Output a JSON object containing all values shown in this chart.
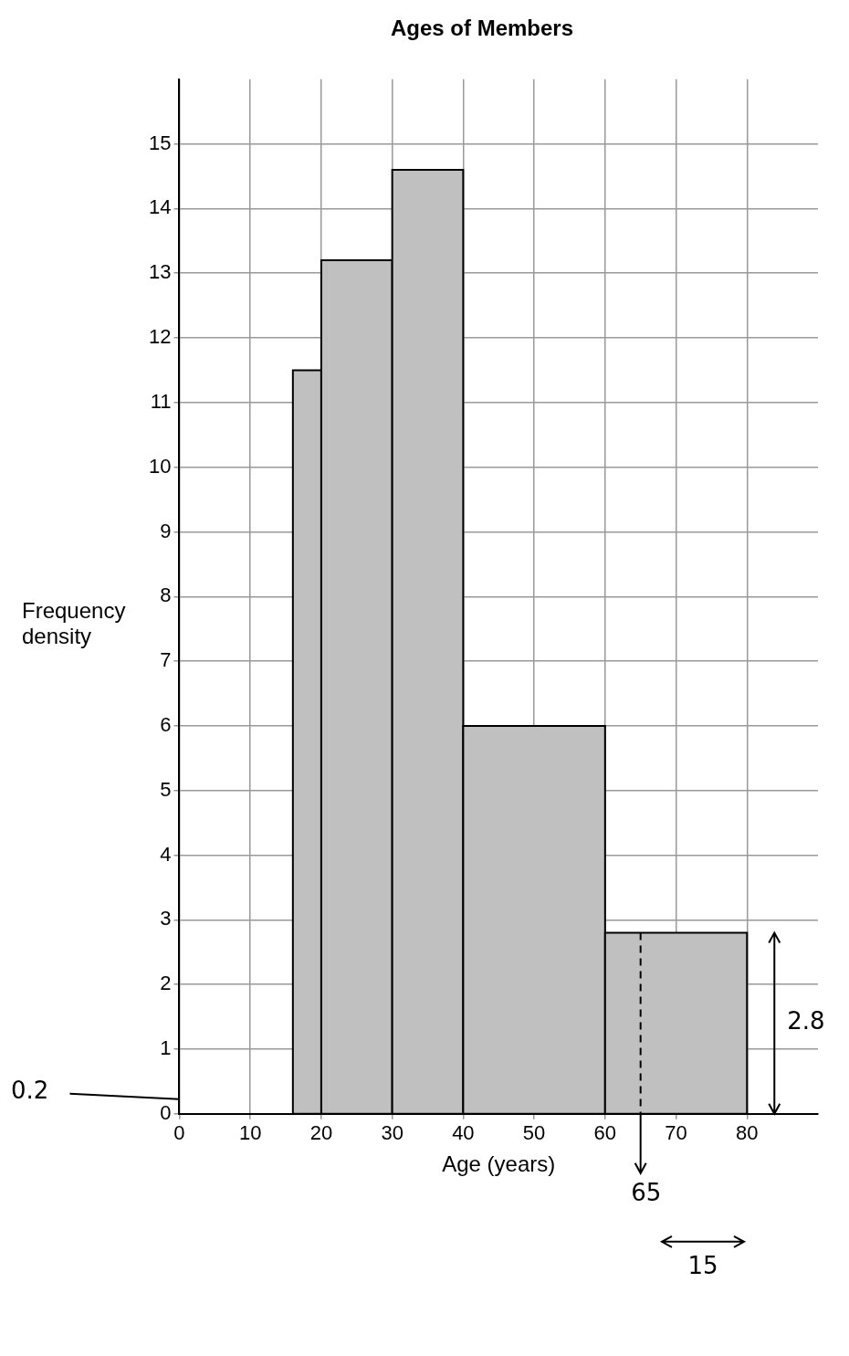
{
  "chart_data": {
    "type": "histogram",
    "title": "Ages of Members",
    "xlabel": "Age (years)",
    "ylabel": "Frequency density",
    "bins": [
      16,
      20,
      30,
      40,
      60,
      80
    ],
    "values": [
      11.5,
      13.2,
      14.6,
      6,
      2.8
    ],
    "color": "#c0c0c0",
    "xlim": [
      0,
      90
    ],
    "xticks": [
      0,
      10,
      20,
      30,
      40,
      50,
      60,
      70,
      80
    ],
    "ylim": [
      0,
      16
    ],
    "yticks": [
      0,
      1,
      2,
      3,
      4,
      5,
      6,
      7,
      8,
      9,
      10,
      11,
      12,
      13,
      14,
      15
    ],
    "grid": true,
    "ref_lines": [
      {
        "axis": "x",
        "value": 65,
        "label": "65",
        "line_style": "dashed",
        "color": "#000000"
      }
    ],
    "annotations": [
      "0.2",
      "2.8",
      "15"
    ]
  }
}
